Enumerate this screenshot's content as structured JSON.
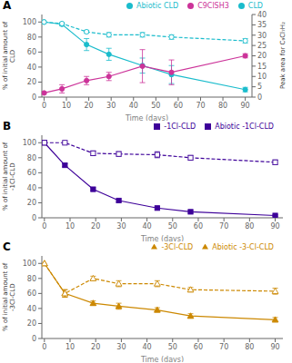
{
  "chart_data": [
    {
      "type": "line",
      "title": "A",
      "x": [
        0,
        8,
        19,
        29,
        44,
        57,
        90
      ],
      "series": [
        {
          "name": "CLD",
          "color": "#1ABCCC",
          "values": [
            100,
            97,
            70,
            57,
            42,
            30,
            10
          ],
          "errors": [
            0,
            2,
            8,
            8,
            10,
            12,
            3
          ],
          "marker": "circle",
          "line_style": "solid"
        },
        {
          "name": "Abiotic CLD",
          "color": "#1ABCCC",
          "values": [
            100,
            98,
            87,
            83,
            83,
            80,
            75
          ],
          "errors": [
            0,
            1,
            2,
            3,
            3,
            3,
            3
          ],
          "marker": "circle",
          "line_style": "dashed"
        },
        {
          "name": "C9ClSH3",
          "color": "#CC3399",
          "values": [
            2,
            4,
            8,
            10,
            15,
            12,
            20
          ],
          "errors": [
            0.5,
            2,
            2,
            2,
            8,
            6,
            1
          ],
          "marker": "circle",
          "line_style": "solid",
          "axis": "y2"
        }
      ],
      "xlabel": "Time (days)",
      "ylabel": "% of initial amount of CLD",
      "y2label": "Peak area for C₉Cl₇H₂",
      "xlim": [
        -1,
        93
      ],
      "ylim": [
        0,
        110
      ],
      "y2lim": [
        0,
        40
      ],
      "xticks": [
        0,
        10,
        20,
        30,
        40,
        50,
        60,
        70,
        80,
        90
      ],
      "yticks": [
        0,
        20,
        40,
        60,
        80,
        100
      ],
      "y2ticks": [
        0,
        5,
        10,
        15,
        20,
        25,
        30,
        35,
        40
      ],
      "legend": "upper right",
      "grid": false
    },
    {
      "type": "line",
      "title": "B",
      "x": [
        0,
        8,
        19,
        29,
        44,
        57,
        90
      ],
      "series": [
        {
          "name": "-1Cl-CLD",
          "color": "#3D0099",
          "values": [
            100,
            70,
            38,
            23,
            13,
            8,
            3
          ],
          "errors": [
            0,
            2,
            2,
            2,
            2,
            2,
            1
          ],
          "marker": "square",
          "line_style": "solid"
        },
        {
          "name": "Abiotic -1Cl-CLD",
          "color": "#3D0099",
          "values": [
            100,
            100,
            86,
            85,
            84,
            80,
            74
          ],
          "errors": [
            0,
            0,
            3,
            3,
            4,
            3,
            3
          ],
          "marker": "square",
          "line_style": "dashed"
        }
      ],
      "xlabel": "Time (days)",
      "ylabel": "% of initial amount of -1Cl-CLD",
      "xlim": [
        -1,
        93
      ],
      "ylim": [
        0,
        110
      ],
      "xticks": [
        0,
        10,
        20,
        30,
        40,
        50,
        60,
        70,
        80,
        90
      ],
      "yticks": [
        0,
        20,
        40,
        60,
        80,
        100
      ],
      "legend": "upper right",
      "grid": false
    },
    {
      "type": "line",
      "title": "C",
      "x": [
        0,
        8,
        19,
        29,
        44,
        57,
        90
      ],
      "series": [
        {
          "name": "-3Cl-CLD",
          "color": "#CC8800",
          "values": [
            100,
            60,
            47,
            43,
            38,
            30,
            25
          ],
          "errors": [
            0,
            5,
            3,
            4,
            3,
            3,
            3
          ],
          "marker": "triangle",
          "line_style": "solid"
        },
        {
          "name": "Abiotic -3-Cl-CLD",
          "color": "#CC8800",
          "values": [
            100,
            60,
            80,
            73,
            73,
            65,
            63
          ],
          "errors": [
            0,
            5,
            3,
            4,
            4,
            3,
            4
          ],
          "marker": "triangle",
          "line_style": "dashed"
        }
      ],
      "xlabel": "Time (days)",
      "ylabel": "% of initial amount of -3Cl-CLD",
      "xlim": [
        -1,
        93
      ],
      "ylim": [
        0,
        110
      ],
      "xticks": [
        0,
        10,
        20,
        30,
        40,
        50,
        60,
        70,
        80,
        90
      ],
      "yticks": [
        0,
        20,
        40,
        60,
        80,
        100
      ],
      "legend": "upper right",
      "grid": false
    }
  ]
}
